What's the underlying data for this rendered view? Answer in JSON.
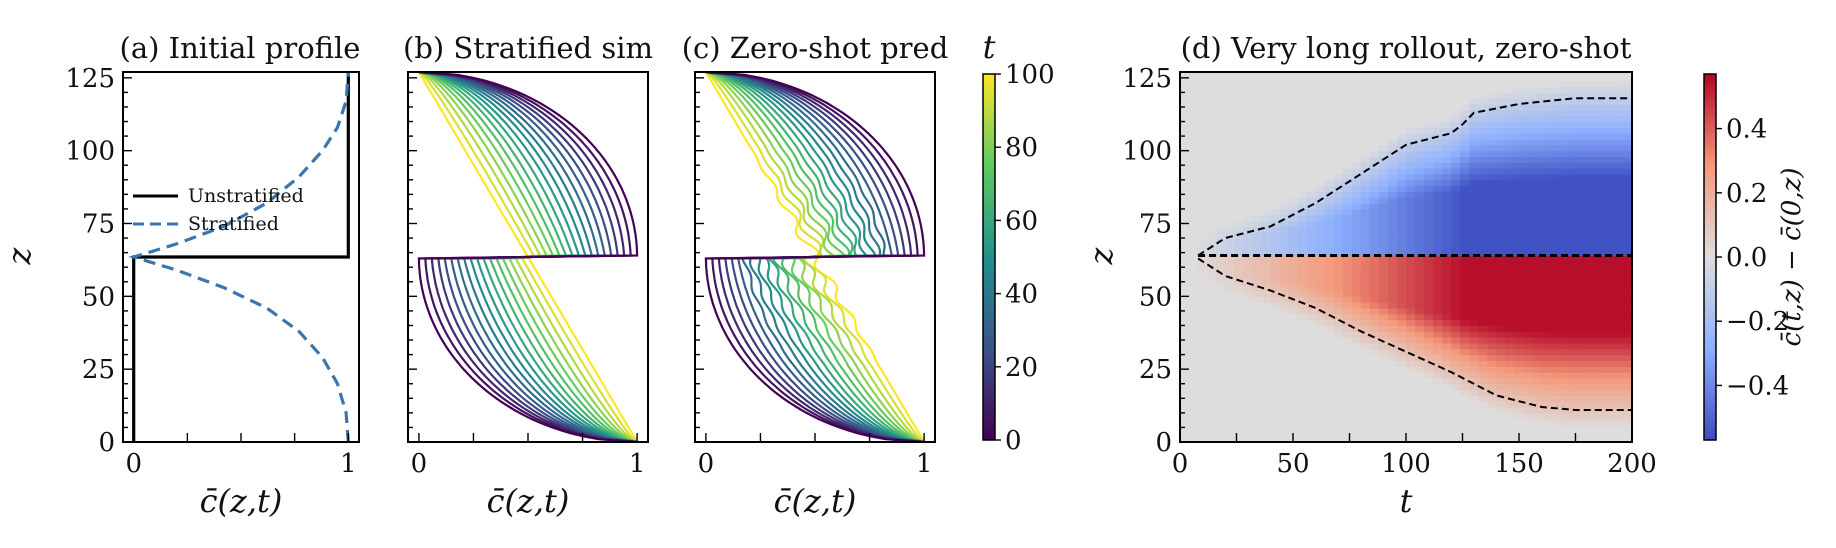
{
  "chart_data": [
    {
      "type": "line",
      "title": "(a) Initial profile",
      "xlabel": "c̄(z,t)",
      "ylabel": "z",
      "xlim": [
        -0.05,
        1.05
      ],
      "ylim": [
        0,
        127
      ],
      "xticks": [
        "0",
        "1"
      ],
      "yticks": [
        "0",
        "25",
        "50",
        "75",
        "100",
        "125"
      ],
      "legend": {
        "position": "center-left",
        "entries": [
          "Unstratified",
          "Stratified"
        ]
      },
      "series": [
        {
          "name": "Unstratified",
          "style": "solid",
          "color": "#000000",
          "x": [
            0,
            0,
            1,
            1
          ],
          "z": [
            0,
            63.5,
            63.5,
            127
          ]
        },
        {
          "name": "Stratified",
          "style": "dashed",
          "color": "#3b75af",
          "x": [
            1,
            0.99,
            0.95,
            0.88,
            0.77,
            0.62,
            0.42,
            0.2,
            0,
            0,
            0.2,
            0.42,
            0.62,
            0.77,
            0.88,
            0.95,
            0.99,
            1
          ],
          "z": [
            0,
            10,
            20,
            29,
            38,
            46,
            53,
            59,
            63.5,
            63.5,
            68,
            74,
            82,
            91,
            100,
            108,
            117,
            127
          ]
        }
      ]
    },
    {
      "type": "line",
      "title": "(b) Stratified sim",
      "xlabel": "c̄(z,t)",
      "xlim": [
        -0.05,
        1.05
      ],
      "ylim": [
        0,
        127
      ],
      "xticks": [
        "0",
        "1"
      ],
      "curves": 18,
      "color_by": "t"
    },
    {
      "type": "line",
      "title": "(c) Zero-shot pred",
      "xlabel": "c̄(z,t)",
      "xlim": [
        -0.05,
        1.05
      ],
      "ylim": [
        0,
        127
      ],
      "xticks": [
        "0",
        "1"
      ],
      "curves": 18,
      "color_by": "t"
    },
    {
      "type": "heatmap",
      "title": "(d) Very long rollout, zero-shot",
      "xlabel": "t",
      "ylabel": "z",
      "xlim": [
        0,
        200
      ],
      "ylim": [
        0,
        127
      ],
      "xticks": [
        "0",
        "50",
        "100",
        "150",
        "200"
      ],
      "yticks": [
        "0",
        "25",
        "50",
        "75",
        "100",
        "125"
      ],
      "contour_upper": {
        "t": [
          8,
          20,
          40,
          60,
          80,
          100,
          110,
          120,
          125,
          130,
          150,
          175,
          200
        ],
        "z": [
          64,
          70,
          74,
          82,
          92,
          102,
          104,
          106,
          109,
          113,
          116,
          118,
          118
        ]
      },
      "contour_lower": {
        "t": [
          8,
          20,
          40,
          60,
          80,
          100,
          120,
          140,
          160,
          175,
          200
        ],
        "z": [
          63,
          57,
          52,
          46,
          38,
          31,
          24,
          16,
          12,
          11,
          11
        ]
      },
      "interface_z": 64
    }
  ],
  "colorbar_t": {
    "label": "t",
    "ticks": [
      "0",
      "20",
      "40",
      "60",
      "80",
      "100"
    ],
    "range": [
      0,
      100
    ]
  },
  "colorbar_diff": {
    "label": "c̄(t,z) − c̄(0,z)",
    "ticks": [
      "−0.4",
      "−0.2",
      "0.0",
      "0.2",
      "0.4"
    ],
    "range": [
      -0.57,
      0.57
    ]
  },
  "colors": {
    "positive": "#b40426",
    "negative": "#3b4cc0",
    "neutral": "#dddddd",
    "stratified": "#3b75af"
  }
}
